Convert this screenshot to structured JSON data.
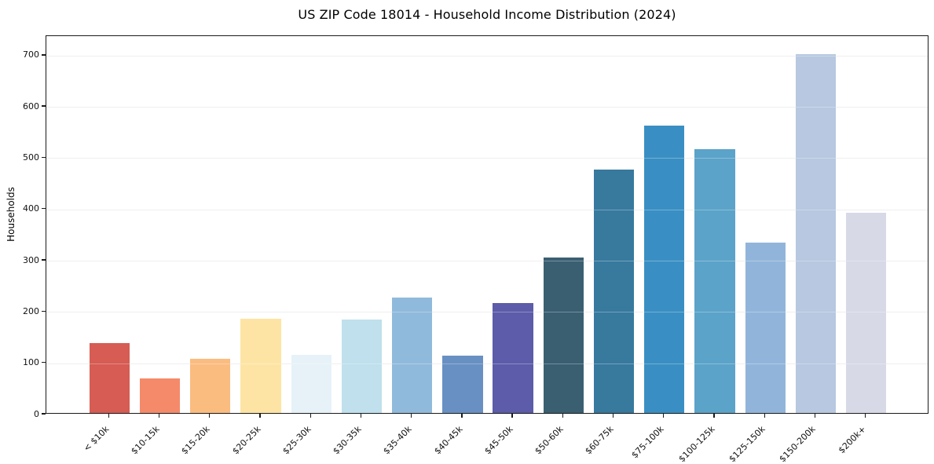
{
  "chart_data": {
    "type": "bar",
    "title": "US ZIP Code 18014 - Household Income Distribution (2024)",
    "xlabel": "",
    "ylabel": "Households",
    "categories": [
      "< $10k",
      "$10-15k",
      "$15-20k",
      "$20-25k",
      "$25-30k",
      "$30-35k",
      "$35-40k",
      "$40-45k",
      "$45-50k",
      "$50-60k",
      "$60-75k",
      "$75-100k",
      "$100-125k",
      "$125-150k",
      "$150-200k",
      "$200k+"
    ],
    "values": [
      136,
      68,
      106,
      184,
      114,
      182,
      225,
      112,
      215,
      303,
      475,
      560,
      515,
      332,
      700,
      390
    ],
    "bar_colors": [
      "#d65c54",
      "#f48a69",
      "#fbbc80",
      "#fee4a4",
      "#e6f2f8",
      "#bfe0ec",
      "#90badb",
      "#6890c3",
      "#5c5caa",
      "#3a5f71",
      "#38799e",
      "#398fc3",
      "#5ba3c9",
      "#91b5da",
      "#b7c8e0",
      "#d7d9e7"
    ],
    "yticks": [
      0,
      100,
      200,
      300,
      400,
      500,
      600,
      700
    ],
    "ylim": [
      0,
      738
    ],
    "grid": "horizontal",
    "legend": "none"
  }
}
